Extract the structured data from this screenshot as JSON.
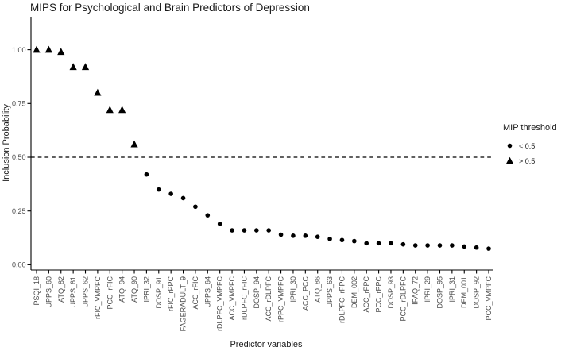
{
  "chart_data": {
    "type": "scatter",
    "title": "MIPS for Psychological and Brain Predictors of Depression",
    "xlabel": "Predictor variables",
    "ylabel": "Inclusion Probability",
    "ylim": [
      0,
      1.05
    ],
    "yticks": [
      0,
      0.25,
      0.5,
      0.75,
      1.0
    ],
    "ytick_labels": [
      "0.00",
      "0.25",
      "0.50",
      "0.75",
      "1.00"
    ],
    "threshold": 0.5,
    "threshold_line_style": "dashed",
    "grid": false,
    "legend": {
      "title": "MIP threshold",
      "position": "right",
      "entries": [
        {
          "marker": "circle",
          "label": "< 0.5"
        },
        {
          "marker": "triangle",
          "label": "> 0.5"
        }
      ]
    },
    "marker_rule": "triangle if value > 0.5 else circle",
    "categories": [
      "PSQI_18",
      "UPPS_60",
      "ATQ_82",
      "UPPS_61",
      "UPPS_62",
      "rFIC_VMPFC",
      "PCC_rFIC",
      "ATQ_94",
      "ATQ_90",
      "IPRI_32",
      "DOSP_91",
      "rFIC_rPPC",
      "FAGERADULT_9",
      "ACC_rFIC",
      "UPPS_64",
      "rDLPFC_VMPFC",
      "ACC_VMPFC",
      "rDLPFC_rFIC",
      "DOSP_94",
      "ACC_rDLPFC",
      "rPPC_VMPFC",
      "IPRI_30",
      "ACC_PCC",
      "ATQ_86",
      "UPPS_63",
      "rDLPFC_rPPC",
      "DEM_002",
      "ACC_rPPC",
      "PCC_rPPC",
      "DOSP_93",
      "PCC_rDLPFC",
      "IPAQ_72",
      "IPRI_29",
      "DOSP_95",
      "IPRI_31",
      "DEM_001",
      "DOSP_92",
      "PCC_VMPFC"
    ],
    "values": [
      1.0,
      1.0,
      0.99,
      0.92,
      0.92,
      0.8,
      0.72,
      0.72,
      0.56,
      0.42,
      0.35,
      0.33,
      0.31,
      0.27,
      0.23,
      0.19,
      0.16,
      0.16,
      0.16,
      0.16,
      0.14,
      0.135,
      0.135,
      0.13,
      0.12,
      0.115,
      0.11,
      0.1,
      0.1,
      0.1,
      0.095,
      0.09,
      0.09,
      0.09,
      0.09,
      0.085,
      0.08,
      0.075
    ],
    "colors": {
      "point": "#000000",
      "axis_line": "#000000",
      "tick_label": "#4d4d4d",
      "title_text": "#1a1a1a",
      "background": "#ffffff"
    }
  }
}
